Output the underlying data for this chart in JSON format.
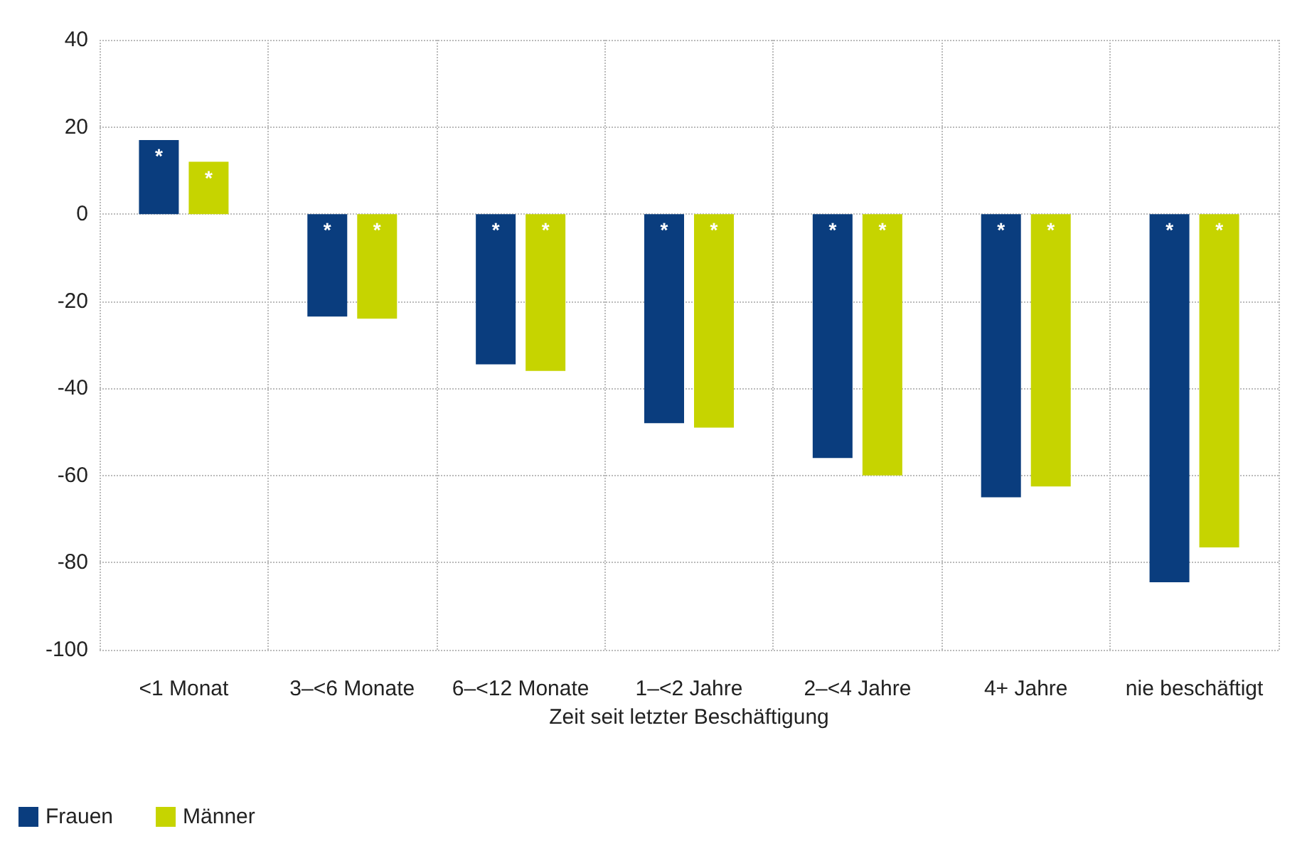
{
  "chart_data": {
    "type": "bar",
    "xlabel": "Zeit seit letzter Beschäftigung",
    "categories": [
      "<1 Monat",
      "3–<6 Monate",
      "6–<12 Monate",
      "1–<2 Jahre",
      "2–<4 Jahre",
      "4+ Jahre",
      "nie beschäftigt"
    ],
    "series": [
      {
        "name": "Frauen",
        "color": "#0a3d7e",
        "values": [
          17,
          -23.5,
          -34.5,
          -48,
          -56,
          -65,
          -84.5
        ],
        "value_labels": [
          "*",
          "*",
          "*",
          "*",
          "*",
          "*",
          "*"
        ]
      },
      {
        "name": "Männer",
        "color": "#c6d400",
        "values": [
          12,
          -24,
          -36,
          -49,
          -60,
          -62.5,
          -76.5
        ],
        "value_labels": [
          "*",
          "*",
          "*",
          "*",
          "*",
          "*",
          "*"
        ]
      }
    ],
    "ylim": [
      -100,
      40
    ],
    "yticks": [
      -100,
      -80,
      -60,
      -40,
      -20,
      0,
      20,
      40
    ],
    "grid": true,
    "legend": "bottom left"
  }
}
